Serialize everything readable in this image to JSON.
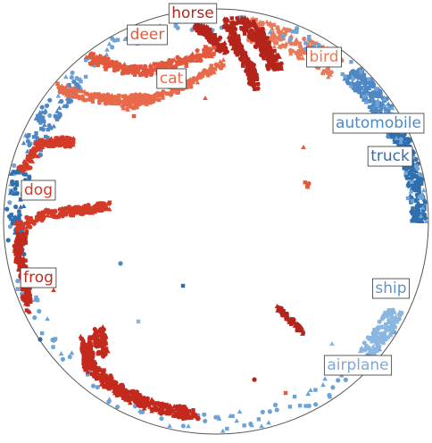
{
  "chart_data": {
    "type": "scatter",
    "title": "",
    "projection": "poincare-disk",
    "point_cloud": "embedding of image classes (illustrative sample points)",
    "classes": [
      {
        "name": "horse",
        "color": "#b5241b",
        "label_color": "#b5241b",
        "angle_deg": 95
      },
      {
        "name": "deer",
        "color": "#e2593d",
        "label_color": "#e2593d",
        "angle_deg": 110
      },
      {
        "name": "cat",
        "color": "#e86a4b",
        "label_color": "#e86a4b",
        "angle_deg": 115
      },
      {
        "name": "bird",
        "color": "#e97b5c",
        "label_color": "#e97b5c",
        "angle_deg": 63
      },
      {
        "name": "automobile",
        "color": "#4f88c4",
        "label_color": "#4f88c4",
        "angle_deg": 30
      },
      {
        "name": "truck",
        "color": "#2f6fae",
        "label_color": "#2f6fae",
        "angle_deg": 15
      },
      {
        "name": "dog",
        "color": "#d43a28",
        "label_color": "#d43a28",
        "angle_deg": 172
      },
      {
        "name": "frog",
        "color": "#c32a1d",
        "label_color": "#c32a1d",
        "angle_deg": 198
      },
      {
        "name": "ship",
        "color": "#6ea3d6",
        "label_color": "#5b95cc",
        "angle_deg": 340
      },
      {
        "name": "airplane",
        "color": "#8ab6e0",
        "label_color": "#7eaad6",
        "angle_deg": 320
      }
    ],
    "boundary": "unit circle",
    "xlim": [
      -1,
      1
    ],
    "ylim": [
      -1,
      1
    ],
    "grid": false,
    "legend": "none (class labels placed at cluster positions)"
  }
}
